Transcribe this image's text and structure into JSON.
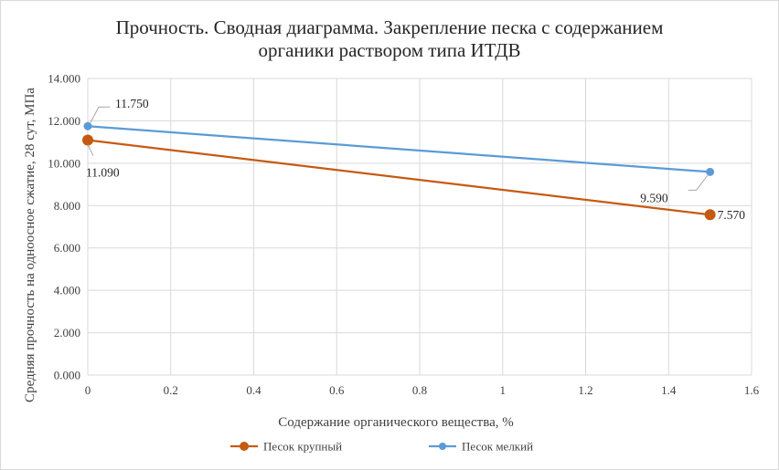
{
  "chart_data": {
    "type": "line",
    "title_lines": [
      "Прочность. Сводная диаграмма. Закрепление песка с содержанием",
      "органики раствором типа ИТДВ"
    ],
    "xlabel": "Содержание органического вещества, %",
    "ylabel": "Средняя прочность на одноосное сжатие, 28 сут, МПа",
    "xlim": [
      0,
      1.6
    ],
    "ylim": [
      0,
      14
    ],
    "x_ticks": [
      0,
      0.2,
      0.4,
      0.6,
      0.8,
      1,
      1.2,
      1.4,
      1.6
    ],
    "x_tick_labels": [
      "0",
      "0.2",
      "0.4",
      "0.6",
      "0.8",
      "1",
      "1.2",
      "1.4",
      "1.6"
    ],
    "y_ticks": [
      0,
      2,
      4,
      6,
      8,
      10,
      12,
      14
    ],
    "y_tick_labels": [
      "0.000",
      "2.000",
      "4.000",
      "6.000",
      "8.000",
      "10.000",
      "12.000",
      "14.000"
    ],
    "grid": "vertical and horizontal major gridlines",
    "legend_position": "bottom",
    "series": [
      {
        "name": "Песок крупный",
        "color": "#c55a11",
        "x": [
          0,
          1.5
        ],
        "y": [
          11.09,
          7.57
        ],
        "data_labels": [
          "11.090",
          "7.570"
        ]
      },
      {
        "name": "Песок мелкий",
        "color": "#5b9bd5",
        "x": [
          0,
          1.5
        ],
        "y": [
          11.75,
          9.59
        ],
        "data_labels": [
          "11.750",
          "9.590"
        ]
      }
    ]
  }
}
